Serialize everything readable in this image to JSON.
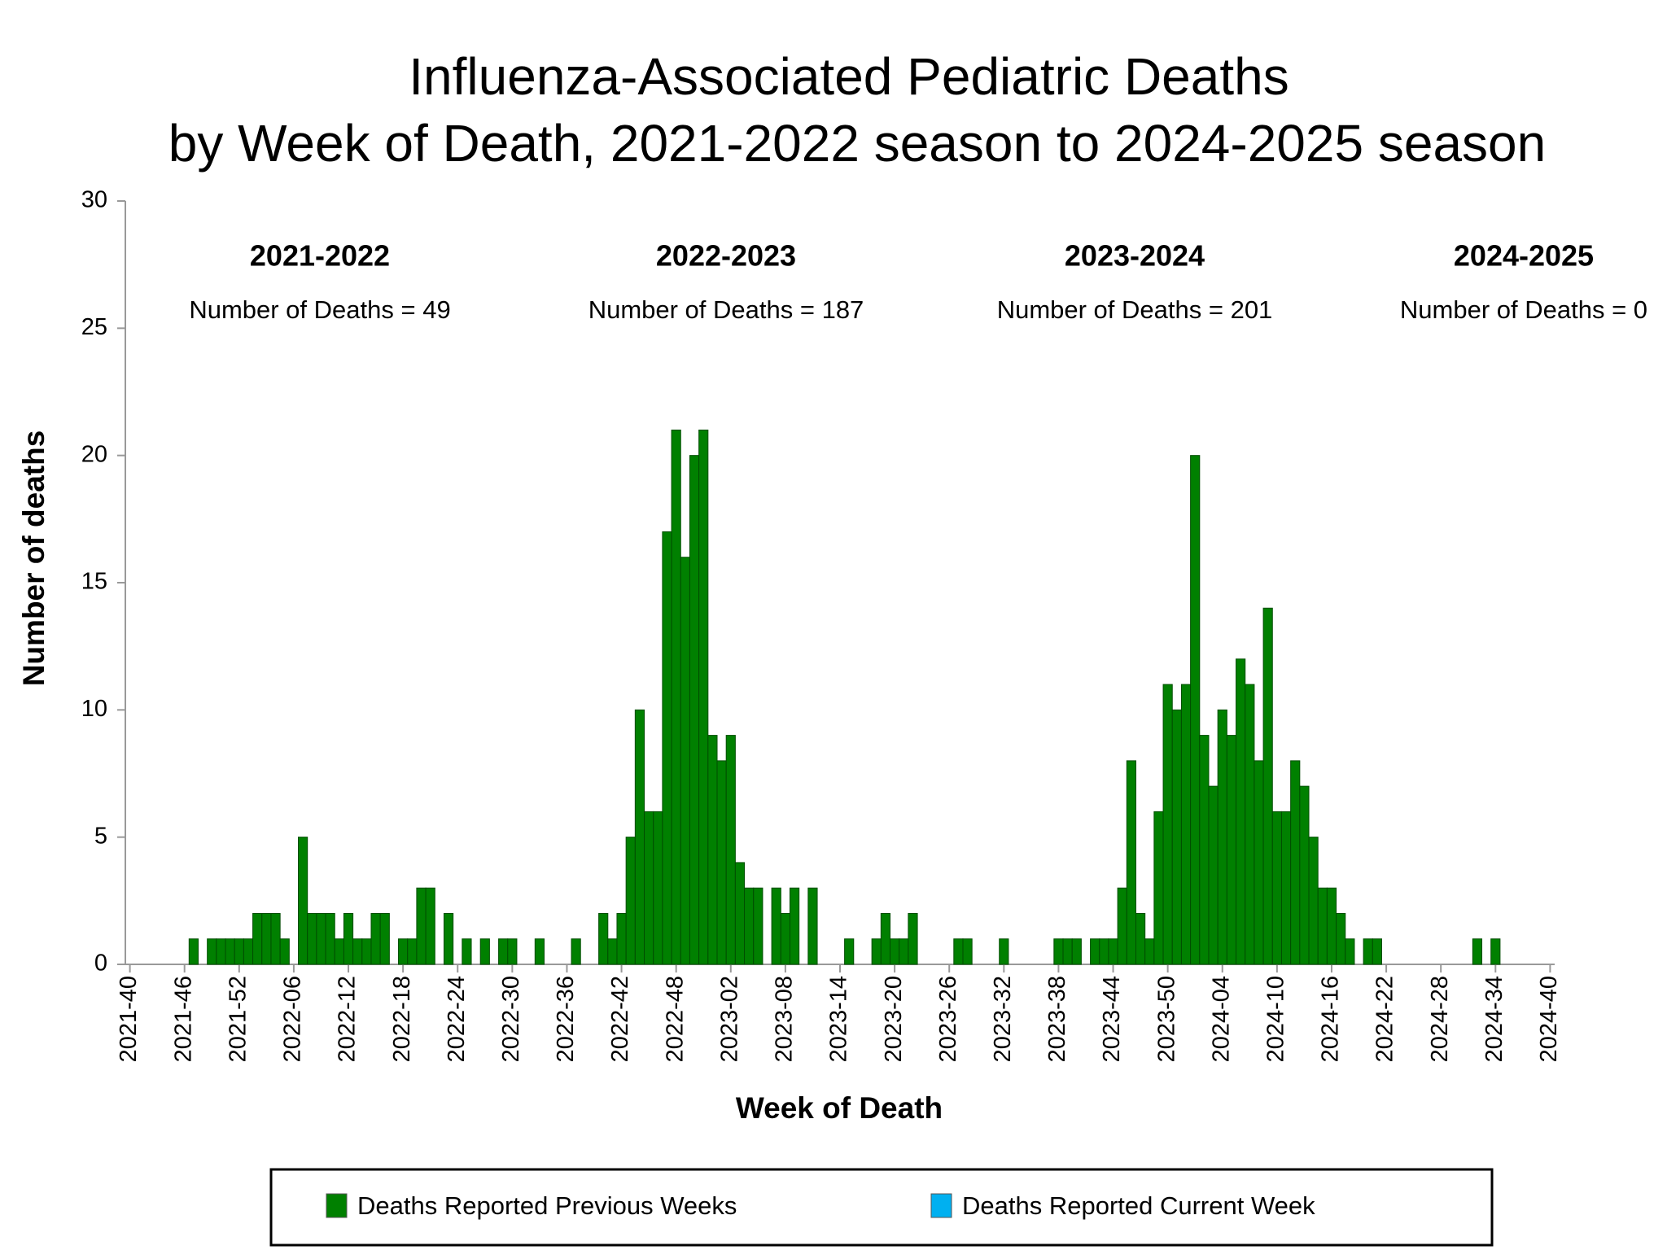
{
  "chart_data": {
    "type": "bar",
    "title": [
      "Influenza-Associated Pediatric Deaths",
      "by Week of Death, 2021-2022 season to 2024-2025 season"
    ],
    "x_label": "Week of Death",
    "y_label": "Number of deaths",
    "ylim": [
      0,
      30
    ],
    "yticks": [
      0,
      5,
      10,
      15,
      20,
      25,
      30
    ],
    "grid": false,
    "stacked": true,
    "annotations": [
      {
        "label": "2021-2022",
        "text": "Number of Deaths = 49"
      },
      {
        "label": "2022-2023",
        "text": "Number of Deaths = 187"
      },
      {
        "label": "2023-2024",
        "text": "Number of Deaths = 201"
      },
      {
        "label": "2024-2025",
        "text": "Number of Deaths = 0"
      }
    ],
    "categories": [
      "2021-40",
      null,
      null,
      null,
      null,
      null,
      "2021-46",
      null,
      null,
      null,
      null,
      null,
      "2021-52",
      null,
      null,
      null,
      null,
      null,
      "2022-06",
      null,
      null,
      null,
      null,
      null,
      "2022-12",
      null,
      null,
      null,
      null,
      null,
      "2022-18",
      null,
      null,
      null,
      null,
      null,
      "2022-24",
      null,
      null,
      null,
      null,
      null,
      "2022-30",
      null,
      null,
      null,
      null,
      null,
      "2022-36",
      null,
      null,
      null,
      null,
      null,
      "2022-42",
      null,
      null,
      null,
      null,
      null,
      "2022-48",
      null,
      null,
      null,
      null,
      null,
      "2023-02",
      null,
      null,
      null,
      null,
      null,
      "2023-08",
      null,
      null,
      null,
      null,
      null,
      "2023-14",
      null,
      null,
      null,
      null,
      null,
      "2023-20",
      null,
      null,
      null,
      null,
      null,
      "2023-26",
      null,
      null,
      null,
      null,
      null,
      "2023-32",
      null,
      null,
      null,
      null,
      null,
      "2023-38",
      null,
      null,
      null,
      null,
      null,
      "2023-44",
      null,
      null,
      null,
      null,
      null,
      "2023-50",
      null,
      null,
      null,
      null,
      null,
      "2024-04",
      null,
      null,
      null,
      null,
      null,
      "2024-10",
      null,
      null,
      null,
      null,
      null,
      "2024-16",
      null,
      null,
      null,
      null,
      null,
      "2024-22",
      null,
      null,
      null,
      null,
      null,
      "2024-28",
      null,
      null,
      null,
      null,
      null,
      "2024-34",
      null,
      null,
      null,
      null,
      null,
      "2024-40"
    ],
    "series": [
      {
        "name": "Deaths Reported Previous Weeks",
        "color": "#008000",
        "values": [
          0,
          0,
          0,
          0,
          0,
          0,
          0,
          1,
          0,
          1,
          1,
          1,
          1,
          1,
          2,
          2,
          2,
          1,
          0,
          5,
          2,
          2,
          2,
          1,
          2,
          1,
          1,
          2,
          2,
          0,
          1,
          1,
          3,
          3,
          0,
          2,
          0,
          1,
          0,
          1,
          0,
          1,
          1,
          0,
          0,
          1,
          0,
          0,
          0,
          1,
          0,
          0,
          2,
          1,
          2,
          5,
          10,
          6,
          6,
          17,
          21,
          16,
          20,
          21,
          9,
          8,
          9,
          4,
          3,
          3,
          0,
          3,
          2,
          3,
          0,
          3,
          0,
          0,
          0,
          1,
          0,
          0,
          1,
          2,
          1,
          1,
          2,
          0,
          0,
          0,
          0,
          1,
          1,
          0,
          0,
          0,
          1,
          0,
          0,
          0,
          0,
          0,
          1,
          1,
          1,
          0,
          1,
          1,
          1,
          3,
          8,
          2,
          1,
          6,
          11,
          10,
          11,
          20,
          9,
          7,
          10,
          9,
          12,
          11,
          8,
          14,
          6,
          6,
          8,
          7,
          5,
          3,
          3,
          2,
          1,
          0,
          1,
          1,
          0,
          0,
          0,
          0,
          0,
          0,
          0,
          0,
          0,
          0,
          1,
          0,
          1,
          0,
          0,
          0,
          0,
          0,
          0
        ]
      },
      {
        "name": "Deaths Reported Current Week",
        "color": "#00b0f0",
        "values": [
          0,
          0,
          0,
          0,
          0,
          0,
          0,
          0,
          0,
          0,
          0,
          0,
          0,
          0,
          0,
          0,
          0,
          0,
          0,
          0,
          0,
          0,
          0,
          0,
          0,
          0,
          0,
          0,
          0,
          0,
          0,
          0,
          0,
          0,
          0,
          0,
          0,
          0,
          0,
          0,
          0,
          0,
          0,
          0,
          0,
          0,
          0,
          0,
          0,
          0,
          0,
          0,
          0,
          0,
          0,
          0,
          0,
          0,
          0,
          0,
          0,
          0,
          0,
          0,
          0,
          0,
          0,
          0,
          0,
          0,
          0,
          0,
          0,
          0,
          0,
          0,
          0,
          0,
          0,
          0,
          0,
          0,
          0,
          0,
          0,
          0,
          0,
          0,
          0,
          0,
          0,
          0,
          0,
          0,
          0,
          0,
          0,
          0,
          0,
          0,
          0,
          0,
          0,
          0,
          0,
          0,
          0,
          0,
          0,
          0,
          0,
          0,
          0,
          0,
          0,
          0,
          0,
          0,
          0,
          0,
          0,
          0,
          0,
          0,
          0,
          0,
          0,
          0,
          0,
          0,
          0,
          0,
          0,
          0,
          0,
          0,
          0,
          0,
          0,
          0,
          0,
          0,
          0,
          0,
          0,
          0,
          0,
          0,
          0,
          0,
          0,
          0,
          0,
          0,
          0,
          0,
          0
        ]
      }
    ]
  }
}
